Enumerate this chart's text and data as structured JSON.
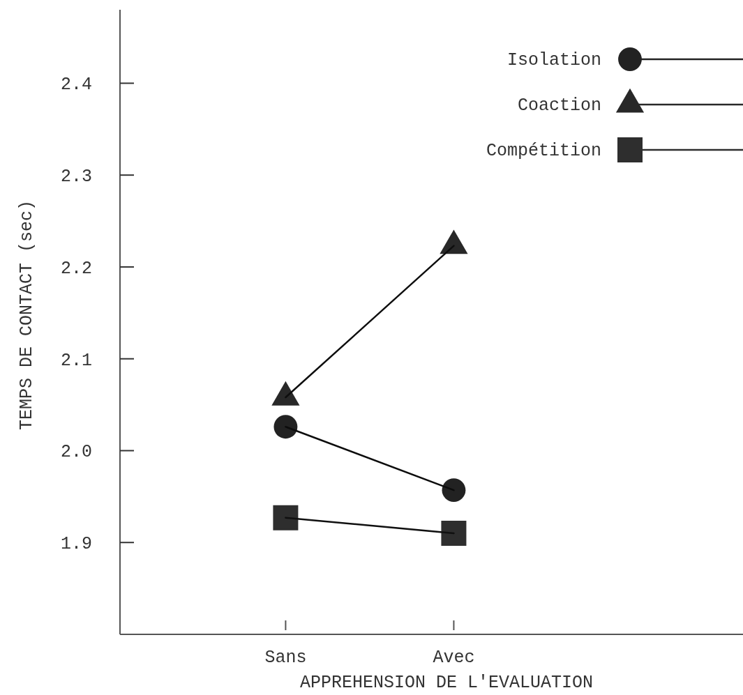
{
  "chart_data": {
    "type": "line",
    "xlabel": "APPREHENSION DE L'EVALUATION",
    "ylabel": "TEMPS DE CONTACT (sec)",
    "categories": [
      "Sans",
      "Avec"
    ],
    "series": [
      {
        "name": "Isolation",
        "color": "#222222",
        "marker": "circle",
        "values": [
          2.026,
          1.957
        ]
      },
      {
        "name": "Coaction",
        "color": "#282828",
        "marker": "triangle",
        "values": [
          2.058,
          2.223
        ]
      },
      {
        "name": "Compétition",
        "color": "#2e2e2e",
        "marker": "square",
        "values": [
          1.927,
          1.91
        ]
      }
    ],
    "ylim": [
      1.8,
      2.48
    ],
    "yticks": [
      1.9,
      {
        "value": 2,
        "label": "2.0"
      },
      2.1,
      2.2,
      2.3,
      2.4
    ],
    "grid": false,
    "legend": "top right",
    "line_style": "solid"
  }
}
